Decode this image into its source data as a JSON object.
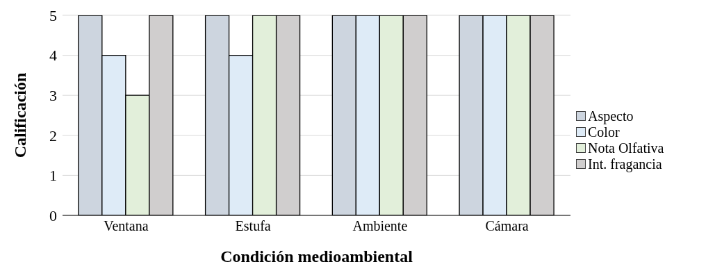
{
  "chart_data": {
    "type": "bar",
    "xlabel": "Condición medioambiental",
    "ylabel": "Calificación",
    "categories": [
      "Ventana",
      "Estufa",
      "Ambiente",
      "Cámara"
    ],
    "series": [
      {
        "name": "Aspecto",
        "color": "#cdd5df",
        "values": [
          5,
          5,
          5,
          5
        ]
      },
      {
        "name": "Color",
        "color": "#deebf7",
        "values": [
          4,
          4,
          5,
          5
        ]
      },
      {
        "name": "Nota Olfativa",
        "color": "#e2efda",
        "values": [
          3,
          5,
          5,
          5
        ]
      },
      {
        "name": "Int. fragancia",
        "color": "#d0cece",
        "values": [
          5,
          5,
          5,
          5
        ]
      }
    ],
    "ylim": [
      0,
      5
    ],
    "yticks": [
      0,
      1,
      2,
      3,
      4,
      5
    ],
    "grid": "y",
    "legend": "right"
  }
}
